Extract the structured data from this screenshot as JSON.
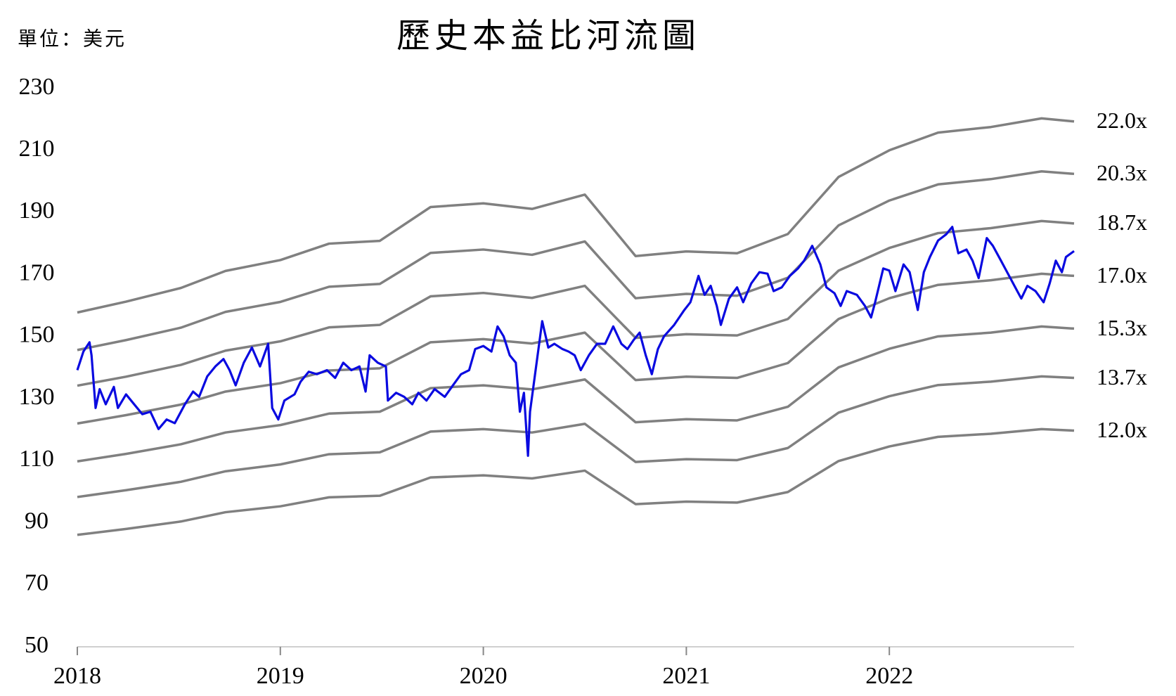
{
  "chart_data": {
    "type": "line",
    "title": "歷史本益比河流圖",
    "subtitle": "單位：美元",
    "xlim": [
      2018,
      2022.91
    ],
    "xticks": [
      2018,
      2019,
      2020,
      2021,
      2022
    ],
    "ylim": [
      50,
      230
    ],
    "yticks": [
      50,
      70,
      90,
      110,
      130,
      150,
      170,
      190,
      210,
      230
    ],
    "grid": false,
    "x": [
      2018.0,
      2018.24,
      2018.51,
      2018.73,
      2019.0,
      2019.24,
      2019.49,
      2019.74,
      2020.0,
      2020.24,
      2020.5,
      2020.75,
      2021.0,
      2021.25,
      2021.5,
      2021.75,
      2022.0,
      2022.24,
      2022.5,
      2022.75,
      2022.91
    ],
    "series": [
      {
        "name": "22.0x",
        "color": "#808080",
        "values": [
          157.8,
          161.3,
          165.7,
          171.2,
          174.7,
          180.0,
          180.9,
          191.8,
          193.0,
          191.2,
          195.8,
          176.0,
          177.5,
          176.9,
          183.1,
          201.5,
          210.1,
          215.8,
          217.6,
          220.4,
          219.4
        ]
      },
      {
        "name": "20.3x",
        "color": "#808080",
        "values": [
          145.7,
          148.9,
          152.9,
          158.0,
          161.2,
          166.1,
          167.0,
          177.0,
          178.1,
          176.4,
          180.7,
          162.4,
          163.8,
          163.2,
          169.0,
          185.9,
          193.9,
          199.1,
          200.8,
          203.3,
          202.5
        ]
      },
      {
        "name": "18.7x",
        "color": "#808080",
        "values": [
          134.2,
          137.1,
          140.9,
          145.5,
          148.5,
          153.0,
          153.8,
          163.0,
          164.1,
          162.5,
          166.4,
          149.6,
          150.8,
          150.4,
          155.7,
          171.3,
          178.6,
          183.4,
          185.0,
          187.3,
          186.5
        ]
      },
      {
        "name": "17.0x",
        "color": "#808080",
        "values": [
          122.0,
          124.7,
          128.1,
          132.3,
          135.0,
          139.1,
          139.8,
          148.2,
          149.2,
          147.8,
          151.3,
          136.0,
          137.1,
          136.7,
          141.5,
          155.7,
          162.4,
          166.7,
          168.2,
          170.3,
          169.6
        ]
      },
      {
        "name": "15.3x",
        "color": "#808080",
        "values": [
          109.8,
          112.2,
          115.3,
          119.1,
          121.5,
          125.2,
          125.8,
          133.4,
          134.3,
          133.0,
          136.2,
          122.4,
          123.4,
          123.0,
          127.4,
          140.1,
          146.1,
          150.1,
          151.3,
          153.3,
          152.6
        ]
      },
      {
        "name": "13.7x",
        "color": "#808080",
        "values": [
          98.3,
          100.5,
          103.2,
          106.6,
          108.8,
          112.1,
          112.7,
          119.4,
          120.2,
          119.1,
          121.9,
          109.6,
          110.5,
          110.2,
          114.1,
          125.5,
          130.8,
          134.4,
          135.5,
          137.2,
          136.7
        ]
      },
      {
        "name": "12.0x",
        "color": "#808080",
        "values": [
          86.1,
          88.0,
          90.4,
          93.4,
          95.3,
          98.2,
          98.7,
          104.6,
          105.3,
          104.3,
          106.8,
          96.0,
          96.8,
          96.5,
          99.9,
          109.9,
          114.6,
          117.7,
          118.7,
          120.2,
          119.7
        ]
      },
      {
        "color": "#0a0ae0",
        "x": [
          2018.0,
          2018.03,
          2018.06,
          2018.07,
          2018.09,
          2018.11,
          2018.14,
          2018.18,
          2018.2,
          2018.24,
          2018.28,
          2018.32,
          2018.36,
          2018.4,
          2018.44,
          2018.48,
          2018.53,
          2018.57,
          2018.6,
          2018.64,
          2018.68,
          2018.72,
          2018.75,
          2018.78,
          2018.82,
          2018.86,
          2018.9,
          2018.94,
          2018.96,
          2018.99,
          2019.02,
          2019.07,
          2019.1,
          2019.14,
          2019.18,
          2019.23,
          2019.27,
          2019.31,
          2019.35,
          2019.39,
          2019.42,
          2019.44,
          2019.48,
          2019.52,
          2019.53,
          2019.57,
          2019.61,
          2019.65,
          2019.68,
          2019.72,
          2019.76,
          2019.81,
          2019.85,
          2019.89,
          2019.93,
          2019.96,
          2020.0,
          2020.04,
          2020.07,
          2020.1,
          2020.13,
          2020.16,
          2020.18,
          2020.2,
          2020.22,
          2020.23,
          2020.26,
          2020.29,
          2020.32,
          2020.35,
          2020.39,
          2020.42,
          2020.45,
          2020.48,
          2020.52,
          2020.56,
          2020.6,
          2020.64,
          2020.68,
          2020.71,
          2020.74,
          2020.77,
          2020.8,
          2020.83,
          2020.86,
          2020.89,
          2020.94,
          2020.99,
          2021.02,
          2021.06,
          2021.09,
          2021.12,
          2021.15,
          2021.17,
          2021.21,
          2021.25,
          2021.28,
          2021.32,
          2021.36,
          2021.4,
          2021.43,
          2021.47,
          2021.51,
          2021.55,
          2021.58,
          2021.62,
          2021.66,
          2021.69,
          2021.73,
          2021.76,
          2021.79,
          2021.84,
          2021.88,
          2021.91,
          2021.93,
          2021.97,
          2022.0,
          2022.03,
          2022.07,
          2022.1,
          2022.14,
          2022.17,
          2022.2,
          2022.24,
          2022.28,
          2022.31,
          2022.34,
          2022.38,
          2022.41,
          2022.44,
          2022.48,
          2022.51,
          2022.55,
          2022.59,
          2022.63,
          2022.65,
          2022.68,
          2022.72,
          2022.76,
          2022.79,
          2022.82,
          2022.85,
          2022.87,
          2022.91
        ],
        "values": [
          139.2,
          145.2,
          148.2,
          144.0,
          127.0,
          133.1,
          128.2,
          133.8,
          127.0,
          131.4,
          128.2,
          125.0,
          125.8,
          120.2,
          123.3,
          122.1,
          128.2,
          132.3,
          130.6,
          137.2,
          140.4,
          142.8,
          139.2,
          134.3,
          141.6,
          146.5,
          140.4,
          147.7,
          127.0,
          123.3,
          129.4,
          131.4,
          135.5,
          138.7,
          137.9,
          139.2,
          136.7,
          141.6,
          139.2,
          140.4,
          132.3,
          144.0,
          141.6,
          140.4,
          129.4,
          131.9,
          130.6,
          128.2,
          131.9,
          129.4,
          133.1,
          130.6,
          134.3,
          137.9,
          139.2,
          146.0,
          147.0,
          145.2,
          153.3,
          150.1,
          144.0,
          141.6,
          125.8,
          131.9,
          111.6,
          125.8,
          140.4,
          155.0,
          146.5,
          147.7,
          146.0,
          145.2,
          144.0,
          139.2,
          144.0,
          147.7,
          147.7,
          153.3,
          147.7,
          146.0,
          148.9,
          151.3,
          144.0,
          137.9,
          146.0,
          150.1,
          153.8,
          158.6,
          161.1,
          169.6,
          163.5,
          166.4,
          159.9,
          153.8,
          162.3,
          165.9,
          161.1,
          167.2,
          170.8,
          170.3,
          164.7,
          165.9,
          169.6,
          172.0,
          174.5,
          179.3,
          173.3,
          165.9,
          164.0,
          159.9,
          164.7,
          163.5,
          159.9,
          156.2,
          161.1,
          172.0,
          171.3,
          164.7,
          173.3,
          170.8,
          158.6,
          170.8,
          175.7,
          181.0,
          183.0,
          185.4,
          176.9,
          178.1,
          174.5,
          168.9,
          181.8,
          179.3,
          174.5,
          169.6,
          164.7,
          162.3,
          166.4,
          164.7,
          161.1,
          167.2,
          174.5,
          170.8,
          175.7,
          177.6
        ]
      }
    ]
  }
}
